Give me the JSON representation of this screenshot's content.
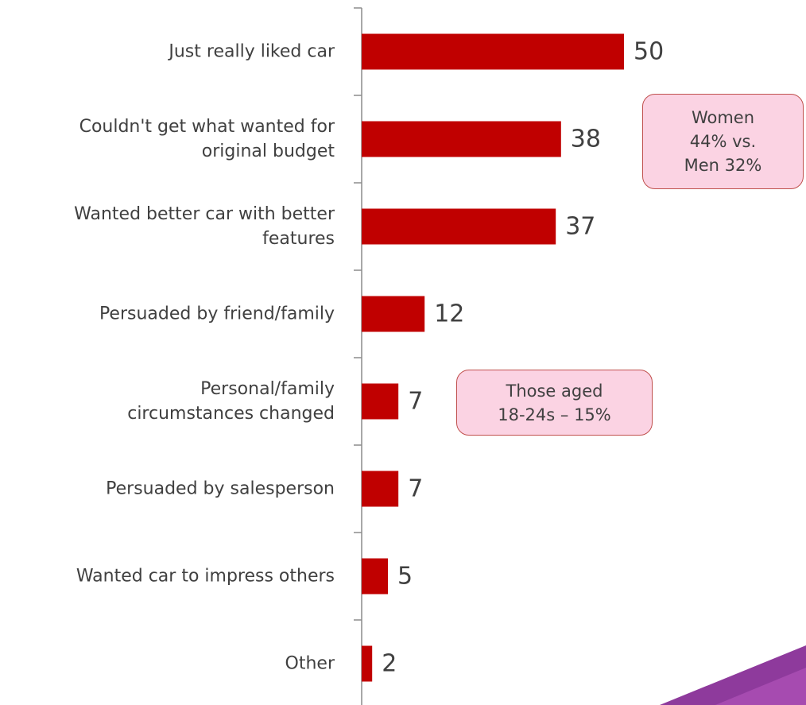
{
  "chart_data": {
    "type": "bar",
    "orientation": "horizontal",
    "categories": [
      "Just really liked car",
      "Couldn't get what wanted for\noriginal budget",
      "Wanted better car with better\nfeatures",
      "Persuaded by friend/family",
      "Personal/family\ncircumstances changed",
      "Persuaded by salesperson",
      "Wanted car to impress others",
      "Other"
    ],
    "values": [
      50,
      38,
      37,
      12,
      7,
      7,
      5,
      2
    ],
    "color": "#c00000",
    "xlim": [
      0,
      50
    ],
    "annotations": [
      "Women\n44% vs.\nMen 32%",
      "Those aged\n18-24s – 15%"
    ]
  }
}
